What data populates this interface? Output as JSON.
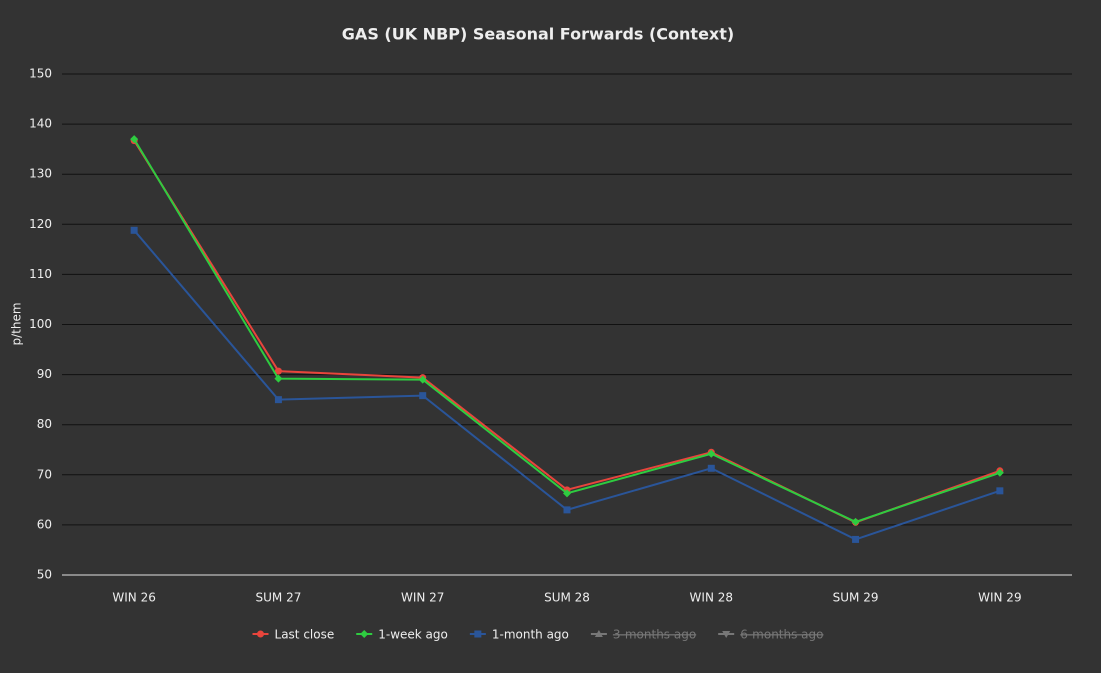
{
  "chart_data": {
    "type": "line",
    "title": "GAS (UK NBP) Seasonal Forwards (Context)",
    "y_label": "p/them",
    "categories": [
      "WIN 26",
      "SUM 27",
      "WIN 27",
      "SUM 28",
      "WIN 28",
      "SUM 29",
      "WIN 29"
    ],
    "series": [
      {
        "name": "Last close",
        "color": "#e8453c",
        "marker": "circle",
        "values": [
          136.7,
          90.7,
          89.4,
          67.0,
          74.5,
          60.5,
          70.8
        ]
      },
      {
        "name": "1-week ago",
        "color": "#2ecc40",
        "marker": "diamond",
        "values": [
          137.0,
          89.2,
          89.0,
          66.3,
          74.2,
          60.6,
          70.4
        ]
      },
      {
        "name": "1-month ago",
        "color": "#2a5599",
        "marker": "square",
        "values": [
          118.8,
          85.0,
          85.8,
          63.0,
          71.3,
          57.1,
          66.8
        ]
      },
      {
        "name": "3-months ago",
        "color": "#777777",
        "marker": "triangle",
        "hidden": true,
        "values": [
          null,
          null,
          null,
          null,
          null,
          null,
          null
        ]
      },
      {
        "name": "6-months ago",
        "color": "#777777",
        "marker": "triangle-down",
        "hidden": true,
        "values": [
          null,
          null,
          null,
          null,
          null,
          null,
          null
        ]
      }
    ],
    "ylim": [
      50,
      150
    ],
    "yticks": [
      50,
      60,
      70,
      80,
      90,
      100,
      110,
      120,
      130,
      140,
      150
    ],
    "grid": true,
    "legend": "bottom"
  }
}
